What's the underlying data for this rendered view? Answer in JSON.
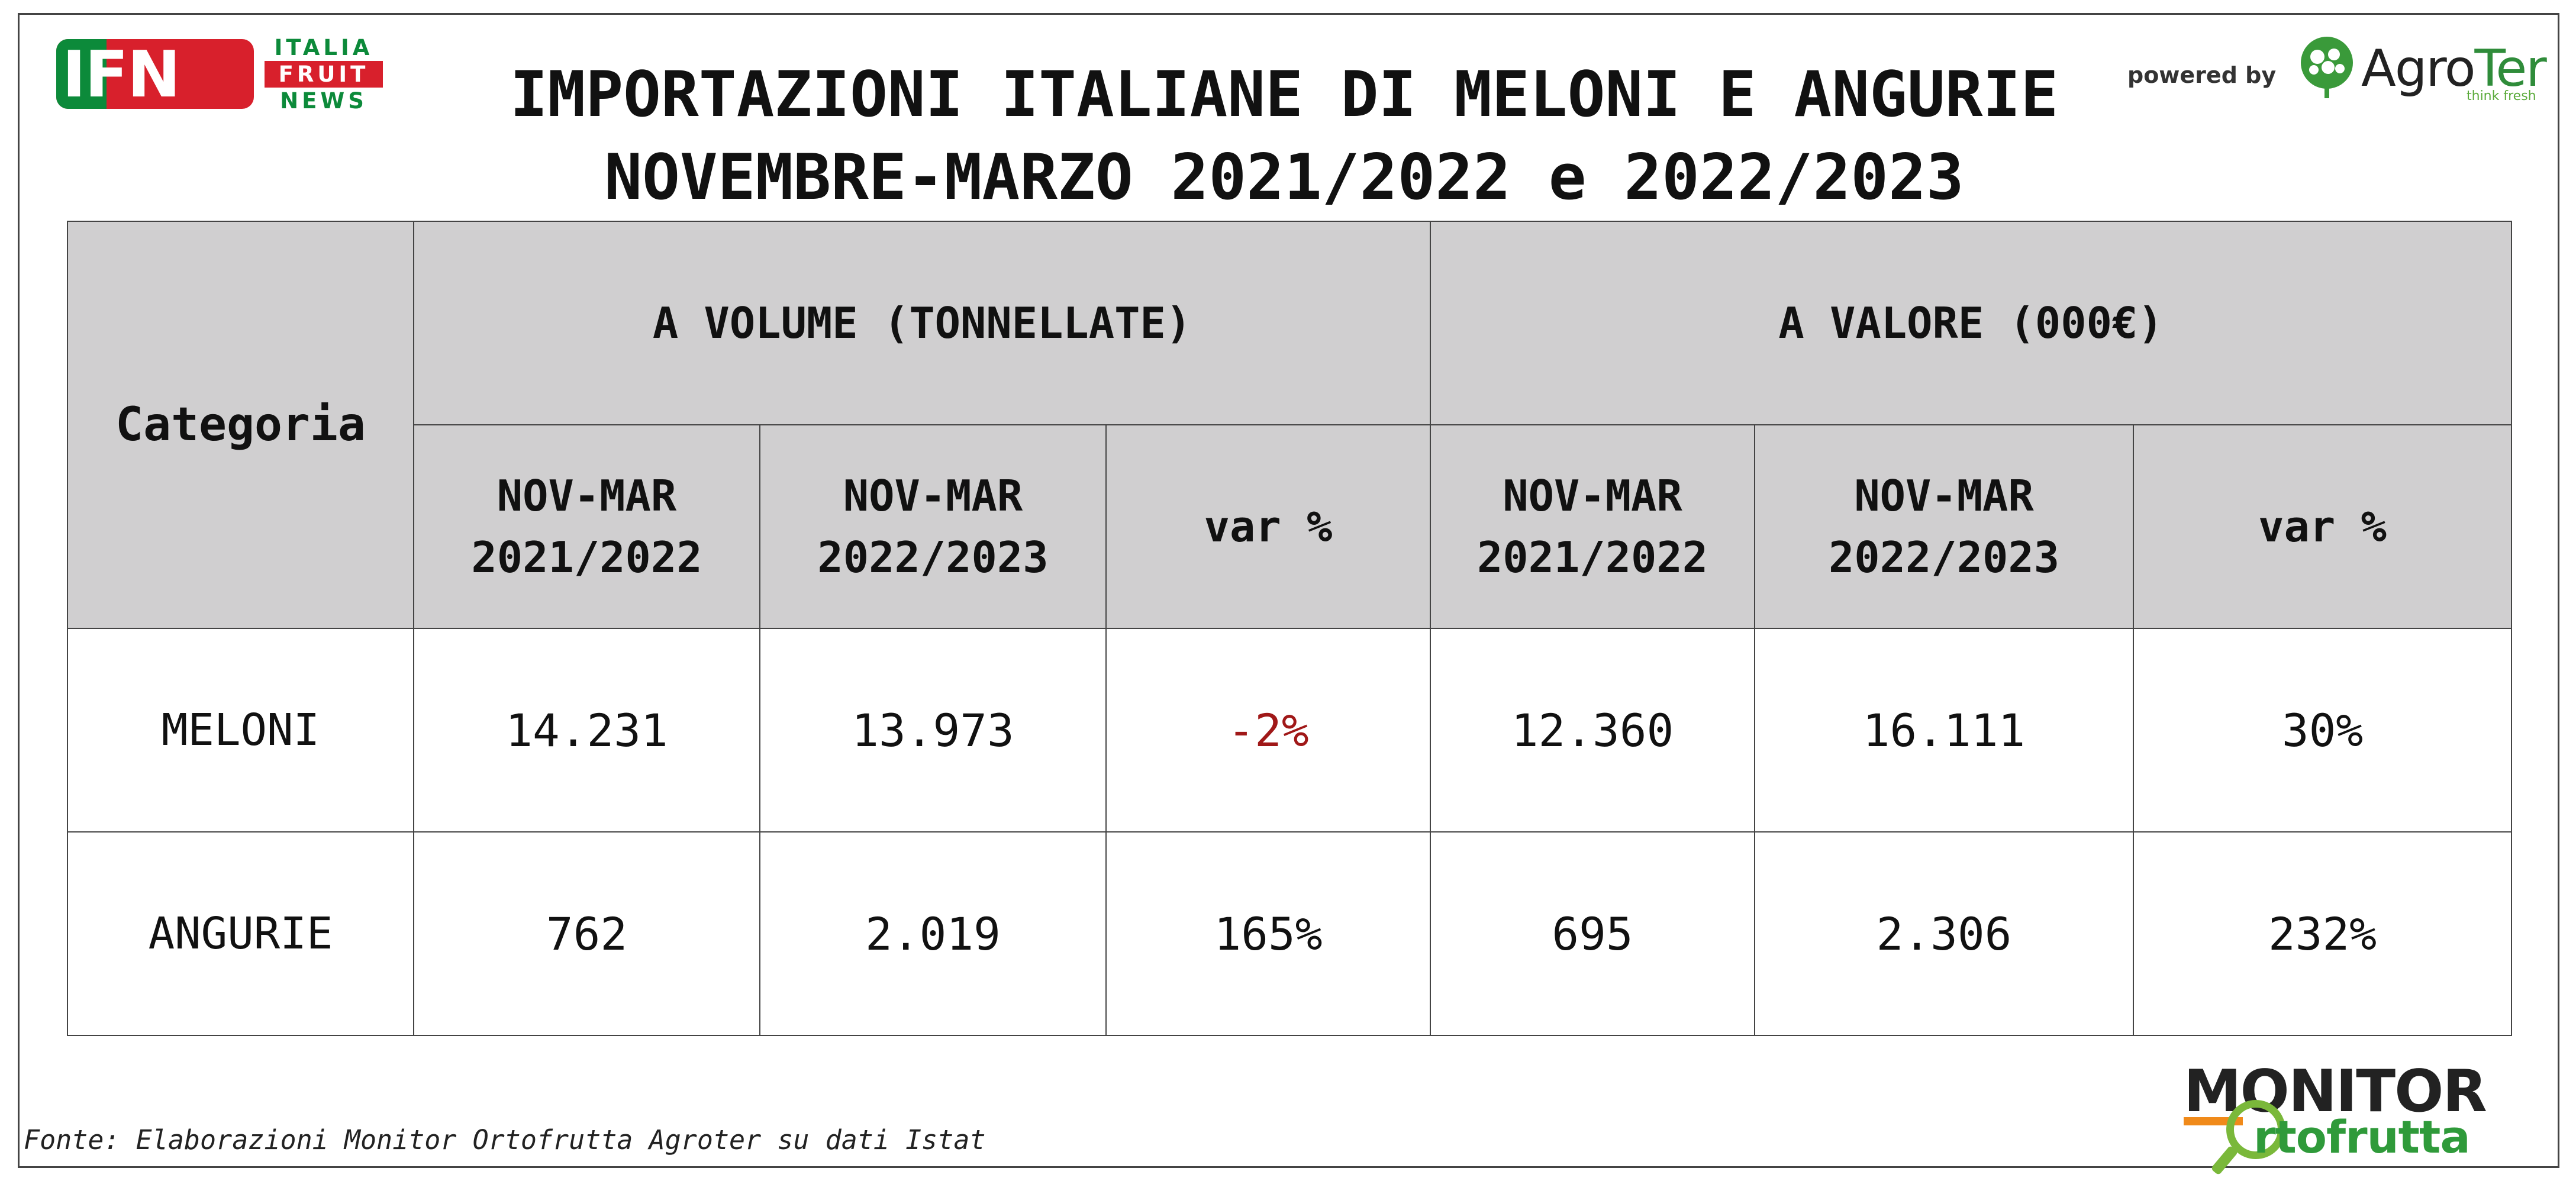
{
  "logos": {
    "ifn": {
      "main": "IFN",
      "side": [
        "ITALIA",
        "FRUIT",
        "NEWS"
      ],
      "colors": {
        "red": "#d8202c",
        "green": "#0c8a3a"
      }
    },
    "agroter": {
      "powered_by": "powered by",
      "name_prefix": "Agro",
      "name_suffix": "Ter",
      "tagline": "think fresh",
      "color": "#2f8c3a"
    },
    "monitor": {
      "line1": "MONITOR",
      "line2": "rtofrutta",
      "colors": {
        "green": "#2f9a3a",
        "orange": "#f08a1a",
        "lime": "#7ab83a"
      }
    }
  },
  "title": {
    "line1": "IMPORTAZIONI ITALIANE DI MELONI E ANGURIE",
    "line2": "NOVEMBRE-MARZO 2021/2022 e 2022/2023"
  },
  "table": {
    "category_header": "Categoria",
    "groups": [
      "A VOLUME (TONNELLATE)",
      "A VALORE (000€)"
    ],
    "subheaders": [
      [
        "NOV-MAR",
        "2021/2022"
      ],
      [
        "NOV-MAR",
        "2022/2023"
      ],
      "var %",
      [
        "NOV-MAR",
        "2021/2022"
      ],
      [
        "NOV-MAR",
        "2022/2023"
      ],
      "var %"
    ],
    "rows": [
      {
        "category": "MELONI",
        "vol_2122": "14.231",
        "vol_2223": "13.973",
        "vol_var": "-2%",
        "val_2122": "12.360",
        "val_2223": "16.111",
        "val_var": "30%"
      },
      {
        "category": "ANGURIE",
        "vol_2122": "762",
        "vol_2223": "2.019",
        "vol_var": "165%",
        "val_2122": "695",
        "val_2223": "2.306",
        "val_var": "232%"
      }
    ],
    "colors": {
      "header_bg": "#d0cfd0",
      "negative": "#a01818"
    }
  },
  "footer": {
    "source": "Fonte: Elaborazioni Monitor Ortofrutta Agroter su dati Istat"
  }
}
